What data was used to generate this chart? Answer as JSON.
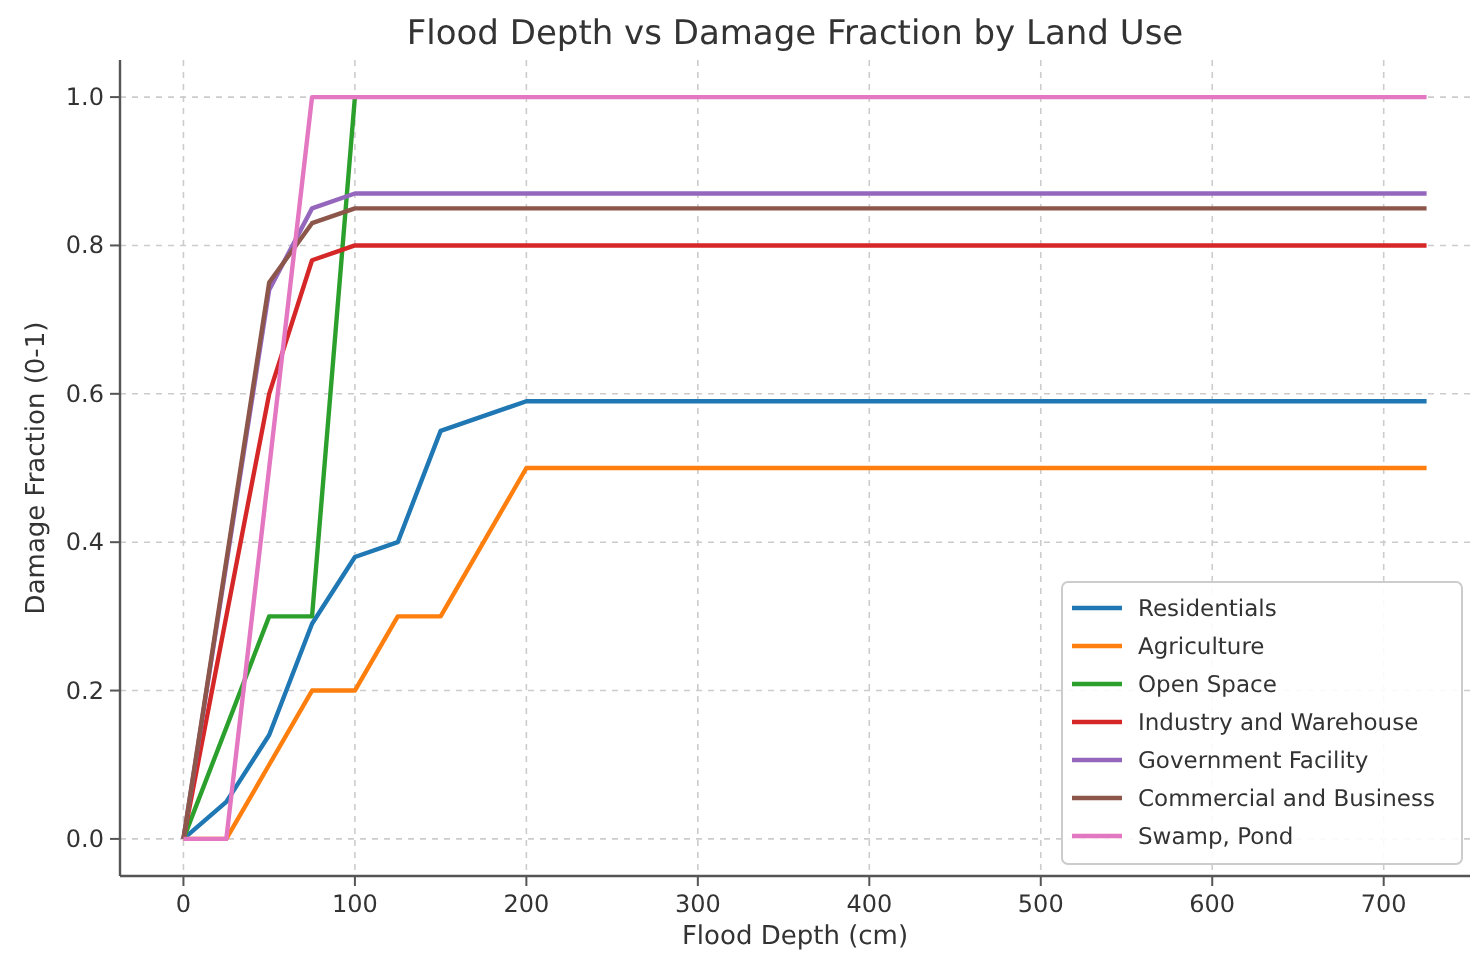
{
  "chart_data": {
    "type": "line",
    "title": "Flood Depth vs Damage Fraction by Land Use",
    "xlabel": "Flood Depth (cm)",
    "ylabel": "Damage Fraction (0-1)",
    "xlim": [
      -37,
      748
    ],
    "xticks": [
      0,
      100,
      200,
      300,
      400,
      500,
      600,
      700
    ],
    "ylim": [
      -0.05,
      1.05
    ],
    "yticks": [
      {
        "value": 0,
        "label": "0.0"
      },
      {
        "value": 0.2,
        "label": "0.2"
      },
      {
        "value": 0.4,
        "label": "0.4"
      },
      {
        "value": 0.6,
        "label": "0.6"
      },
      {
        "value": 0.8,
        "label": "0.8"
      },
      {
        "value": 1,
        "label": "1.0"
      }
    ],
    "grid": true,
    "legend": "bottom right",
    "marker": "none",
    "line_style": "solid",
    "series": [
      {
        "name": "Residentials",
        "color": "#1f77b4",
        "x": [
          0,
          25,
          50,
          75,
          100,
          125,
          150,
          200,
          725
        ],
        "values": [
          0,
          0.05,
          0.14,
          0.29,
          0.38,
          0.4,
          0.55,
          0.59,
          0.59
        ]
      },
      {
        "name": "Agriculture",
        "color": "#ff7f0e",
        "x": [
          0,
          25,
          50,
          75,
          100,
          125,
          150,
          200,
          725
        ],
        "values": [
          0,
          0,
          0.1,
          0.2,
          0.2,
          0.3,
          0.3,
          0.5,
          0.5
        ]
      },
      {
        "name": "Open Space",
        "color": "#2ca02c",
        "x": [
          0,
          50,
          75,
          100
        ],
        "values": [
          0,
          0.3,
          0.3,
          1
        ]
      },
      {
        "name": "Industry and Warehouse",
        "color": "#d62728",
        "x": [
          0,
          50,
          75,
          100,
          725
        ],
        "values": [
          0,
          0.6,
          0.78,
          0.8,
          0.8
        ]
      },
      {
        "name": "Government Facility",
        "color": "#9467bd",
        "x": [
          0,
          50,
          75,
          100,
          725
        ],
        "values": [
          0,
          0.74,
          0.85,
          0.87,
          0.87
        ]
      },
      {
        "name": "Commercial and Business",
        "color": "#8c564b",
        "x": [
          0,
          50,
          75,
          100,
          725
        ],
        "values": [
          0,
          0.75,
          0.83,
          0.85,
          0.85
        ]
      },
      {
        "name": "Swamp, Pond",
        "color": "#e377c2",
        "x": [
          0,
          25,
          75,
          725
        ],
        "values": [
          0,
          0,
          1,
          1
        ]
      }
    ]
  }
}
